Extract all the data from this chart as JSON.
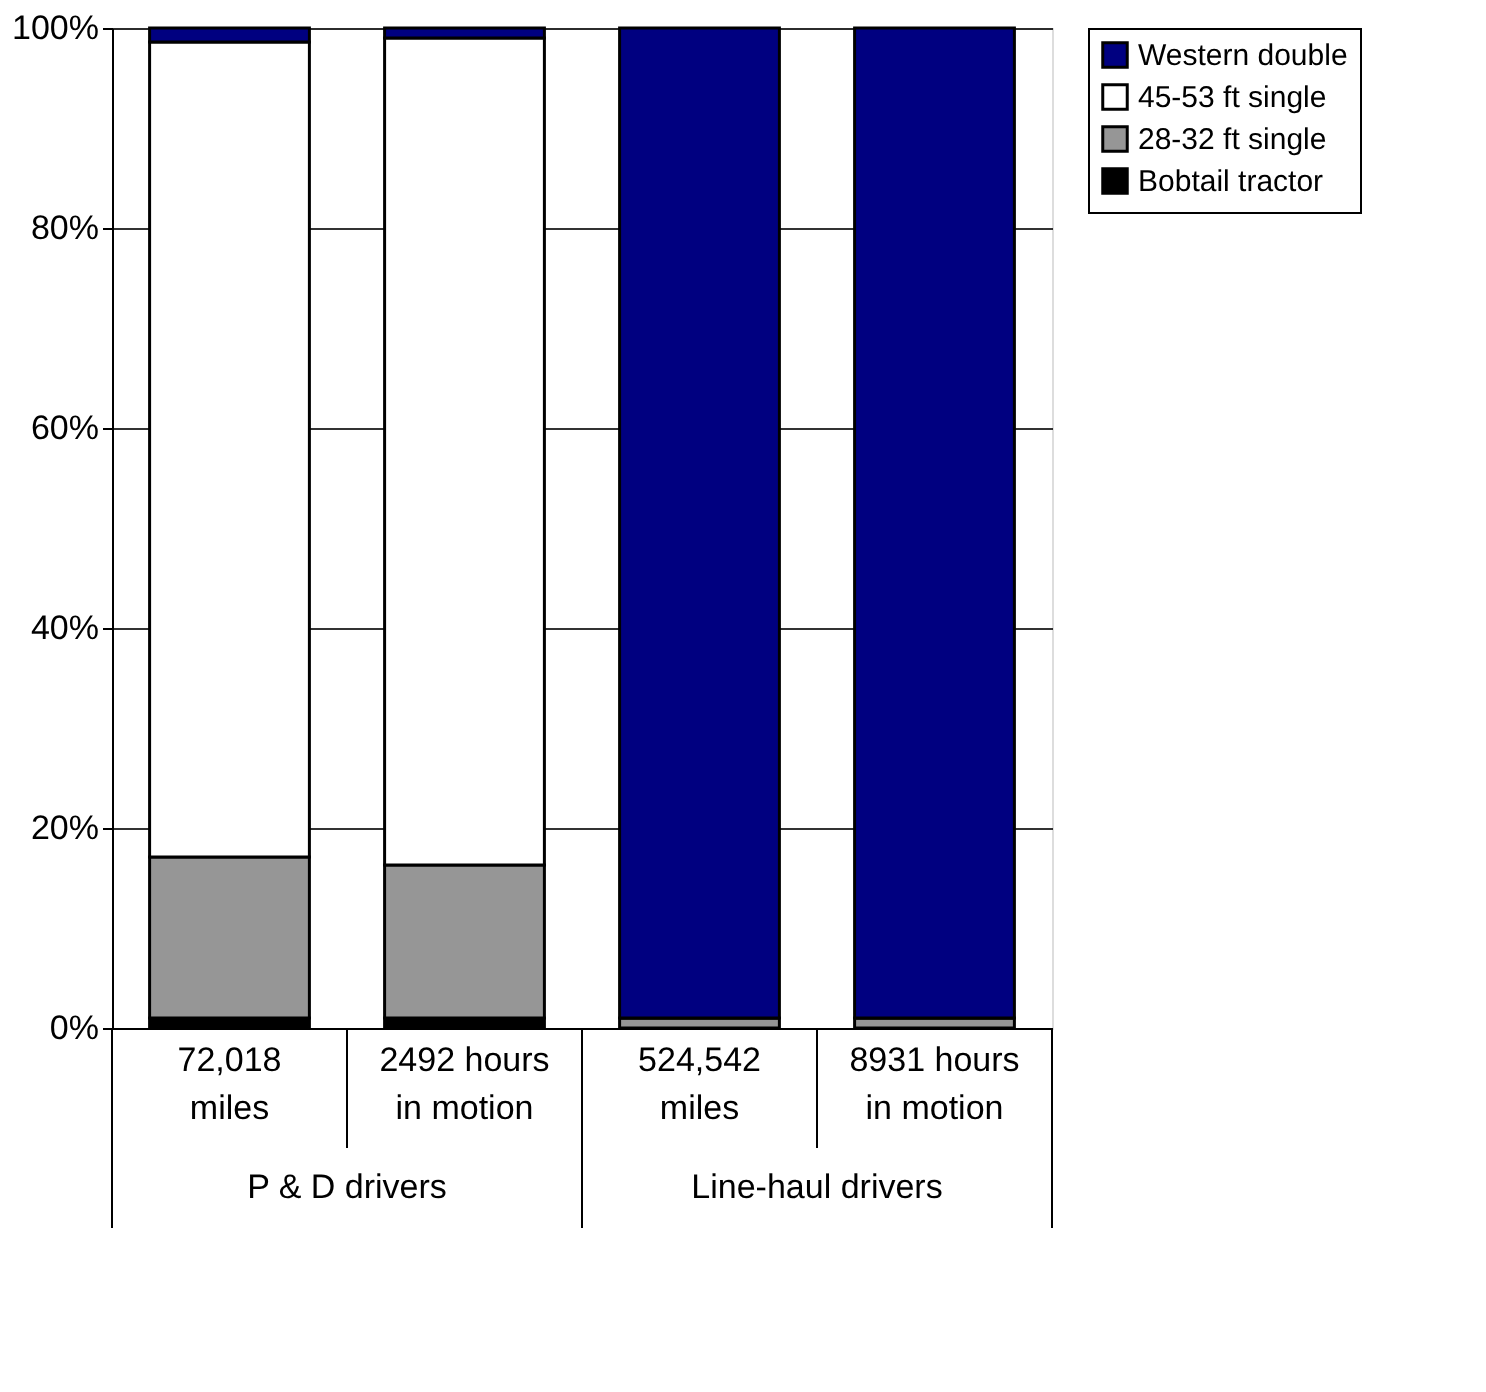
{
  "chart_data": {
    "type": "bar",
    "stacked": true,
    "categories": [
      "72,018 miles",
      "2492 hours in motion",
      "524,542 miles",
      "8931 hours in motion"
    ],
    "series": [
      {
        "name": "Bobtail tractor",
        "color": "#000000",
        "values": [
          1.0,
          1.0,
          0.0,
          0.0
        ]
      },
      {
        "name": "28-32 ft single",
        "color": "#969696",
        "values": [
          16.1,
          15.3,
          1.0,
          1.0
        ]
      },
      {
        "name": "45-53 ft single",
        "color": "#ffffff",
        "values": [
          81.5,
          82.7,
          0.0,
          0.0
        ]
      },
      {
        "name": "Western double",
        "color": "#000080",
        "values": [
          1.4,
          1.0,
          99.0,
          99.0
        ]
      }
    ],
    "ylim": [
      0,
      100
    ],
    "yticks": [
      {
        "value": 0,
        "label": "0%"
      },
      {
        "value": 20,
        "label": "20%"
      },
      {
        "value": 40,
        "label": "40%"
      },
      {
        "value": 60,
        "label": "60%"
      },
      {
        "value": 80,
        "label": "80%"
      },
      {
        "value": 100,
        "label": "100%"
      }
    ],
    "grid": "y",
    "legend": "right",
    "annotations": [
      "P & D drivers",
      "Line-haul drivers"
    ]
  }
}
